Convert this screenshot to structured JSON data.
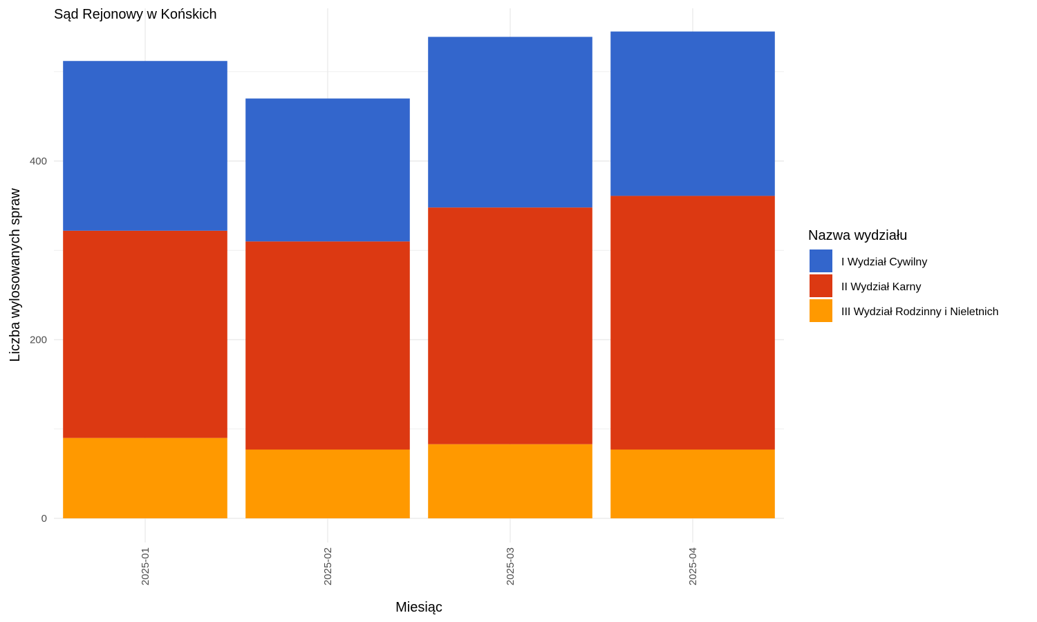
{
  "chart_data": {
    "type": "bar",
    "stacked": true,
    "title": "Sąd Rejonowy w Końskich",
    "xlabel": "Miesiąc",
    "ylabel": "Liczba wylosowanych spraw",
    "categories": [
      "2025-01",
      "2025-02",
      "2025-03",
      "2025-04"
    ],
    "series": [
      {
        "name": "III Wydział Rodzinny i Nieletnich",
        "color": "#FF9900",
        "values": [
          90,
          77,
          83,
          77
        ]
      },
      {
        "name": "II Wydział Karny",
        "color": "#DC3912",
        "values": [
          232,
          233,
          265,
          284
        ]
      },
      {
        "name": "I Wydział Cywilny",
        "color": "#3366CC",
        "values": [
          190,
          160,
          191,
          184
        ]
      }
    ],
    "ylim": [
      0,
      550
    ],
    "yticks": [
      0,
      200,
      400
    ],
    "grid": true,
    "legend": {
      "title": "Nazwa wydziału",
      "position": "right",
      "entries": [
        "I Wydział Cywilny",
        "II Wydział Karny",
        "III Wydział Rodzinny i Nieletnich"
      ]
    }
  }
}
